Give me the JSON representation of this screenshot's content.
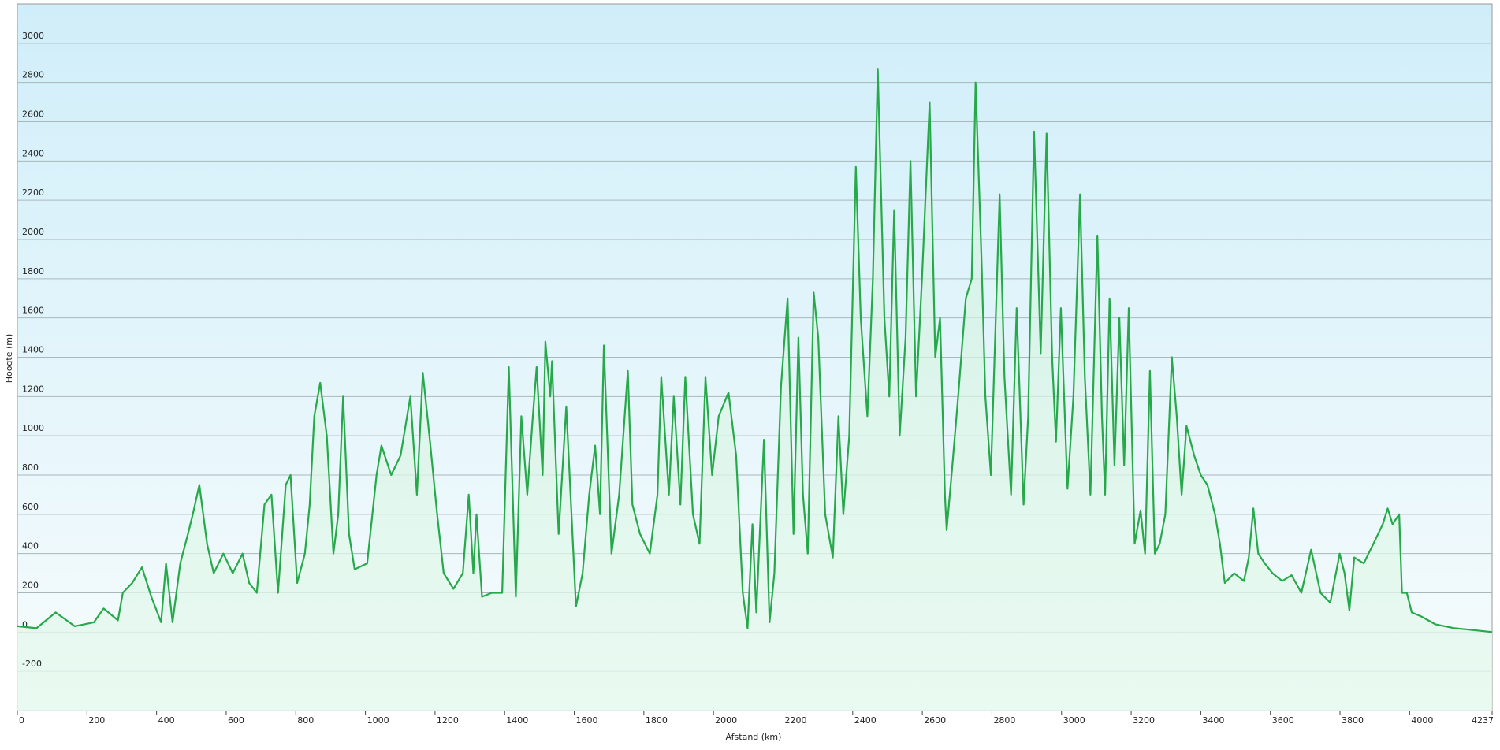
{
  "chart_data": {
    "type": "line",
    "x_label": "Afstand  (km)",
    "y_label": "Hoogte (m)",
    "color": "#27a94b",
    "grid": true,
    "xlim": [
      0,
      4237
    ],
    "ylim": [
      -400,
      3200
    ],
    "xticks": [
      0,
      200,
      400,
      600,
      800,
      1000,
      1200,
      1400,
      1600,
      1800,
      2000,
      2200,
      2400,
      2600,
      2800,
      3000,
      3200,
      3400,
      3600,
      3800,
      4000,
      4237
    ],
    "yticks": [
      -200,
      0,
      200,
      400,
      600,
      800,
      1000,
      1200,
      1400,
      1600,
      1800,
      2000,
      2200,
      2400,
      2600,
      2800,
      3000
    ],
    "x": [
      0,
      55,
      110,
      165,
      220,
      248,
      289,
      303,
      330,
      358,
      385,
      413,
      427,
      446,
      468,
      490,
      504,
      523,
      545,
      564,
      592,
      619,
      647,
      666,
      688,
      710,
      730,
      749,
      771,
      785,
      804,
      826,
      840,
      853,
      870,
      889,
      908,
      922,
      936,
      953,
      969,
      1005,
      1032,
      1046,
      1074,
      1101,
      1129,
      1148,
      1165,
      1184,
      1206,
      1225,
      1253,
      1280,
      1297,
      1310,
      1319,
      1335,
      1363,
      1393,
      1412,
      1432,
      1448,
      1465,
      1481,
      1492,
      1509,
      1517,
      1531,
      1536,
      1555,
      1577,
      1605,
      1624,
      1643,
      1660,
      1674,
      1685,
      1707,
      1729,
      1754,
      1767,
      1789,
      1817,
      1839,
      1850,
      1872,
      1886,
      1905,
      1919,
      1941,
      1960,
      1977,
      1996,
      2015,
      2043,
      2065,
      2084,
      2098,
      2112,
      2123,
      2145,
      2161,
      2175,
      2194,
      2213,
      2230,
      2244,
      2257,
      2271,
      2288,
      2301,
      2321,
      2343,
      2359,
      2373,
      2390,
      2409,
      2423,
      2442,
      2458,
      2472,
      2491,
      2505,
      2519,
      2535,
      2552,
      2566,
      2582,
      2599,
      2621,
      2637,
      2651,
      2665,
      2670,
      2684,
      2703,
      2725,
      2742,
      2753,
      2770,
      2781,
      2797,
      2811,
      2822,
      2836,
      2855,
      2871,
      2891,
      2904,
      2921,
      2940,
      2957,
      2973,
      2984,
      2998,
      3017,
      3034,
      3053,
      3067,
      3083,
      3103,
      3116,
      3125,
      3138,
      3152,
      3166,
      3180,
      3193,
      3210,
      3227,
      3240,
      3254,
      3268,
      3282,
      3298,
      3317,
      3331,
      3345,
      3359,
      3381,
      3400,
      3419,
      3441,
      3455,
      3469,
      3496,
      3524,
      3538,
      3551,
      3565,
      3584,
      3606,
      3634,
      3661,
      3689,
      3717,
      3744,
      3772,
      3799,
      3813,
      3827,
      3841,
      3868,
      3896,
      3923,
      3937,
      3951,
      3970,
      3978,
      3992,
      4006,
      4033,
      4074,
      4129,
      4184,
      4237
    ],
    "values": [
      30,
      20,
      100,
      30,
      50,
      120,
      60,
      200,
      250,
      330,
      180,
      50,
      350,
      50,
      350,
      500,
      600,
      750,
      450,
      300,
      400,
      300,
      400,
      250,
      200,
      650,
      700,
      200,
      750,
      800,
      250,
      400,
      650,
      1100,
      1270,
      1000,
      400,
      600,
      1200,
      500,
      320,
      350,
      800,
      950,
      800,
      900,
      1200,
      700,
      1320,
      1000,
      600,
      300,
      220,
      300,
      700,
      300,
      600,
      180,
      200,
      200,
      1350,
      180,
      1100,
      700,
      1100,
      1350,
      800,
      1480,
      1200,
      1380,
      500,
      1150,
      130,
      300,
      700,
      950,
      600,
      1460,
      400,
      700,
      1330,
      650,
      500,
      400,
      700,
      1300,
      700,
      1200,
      650,
      1300,
      600,
      450,
      1300,
      800,
      1100,
      1220,
      900,
      200,
      20,
      550,
      100,
      980,
      50,
      300,
      1250,
      1700,
      500,
      1500,
      700,
      400,
      1730,
      1500,
      600,
      380,
      1100,
      600,
      1000,
      2370,
      1600,
      1100,
      1800,
      2870,
      1600,
      1200,
      2150,
      1000,
      1500,
      2400,
      1200,
      1800,
      2700,
      1400,
      1600,
      700,
      520,
      800,
      1200,
      1700,
      1800,
      2800,
      1900,
      1200,
      800,
      1600,
      2230,
      1300,
      700,
      1650,
      650,
      1100,
      2550,
      1420,
      2540,
      1400,
      970,
      1650,
      730,
      1200,
      2230,
      1300,
      700,
      2020,
      1100,
      700,
      1700,
      850,
      1600,
      850,
      1650,
      450,
      620,
      400,
      1330,
      400,
      450,
      600,
      1400,
      1100,
      700,
      1050,
      900,
      800,
      750,
      600,
      450,
      250,
      300,
      260,
      380,
      630,
      400,
      350,
      300,
      260,
      290,
      200,
      420,
      200,
      150,
      400,
      300,
      110,
      380,
      350,
      450,
      550,
      630,
      550,
      600,
      200,
      200,
      100,
      80,
      40,
      20,
      10,
      0
    ]
  }
}
